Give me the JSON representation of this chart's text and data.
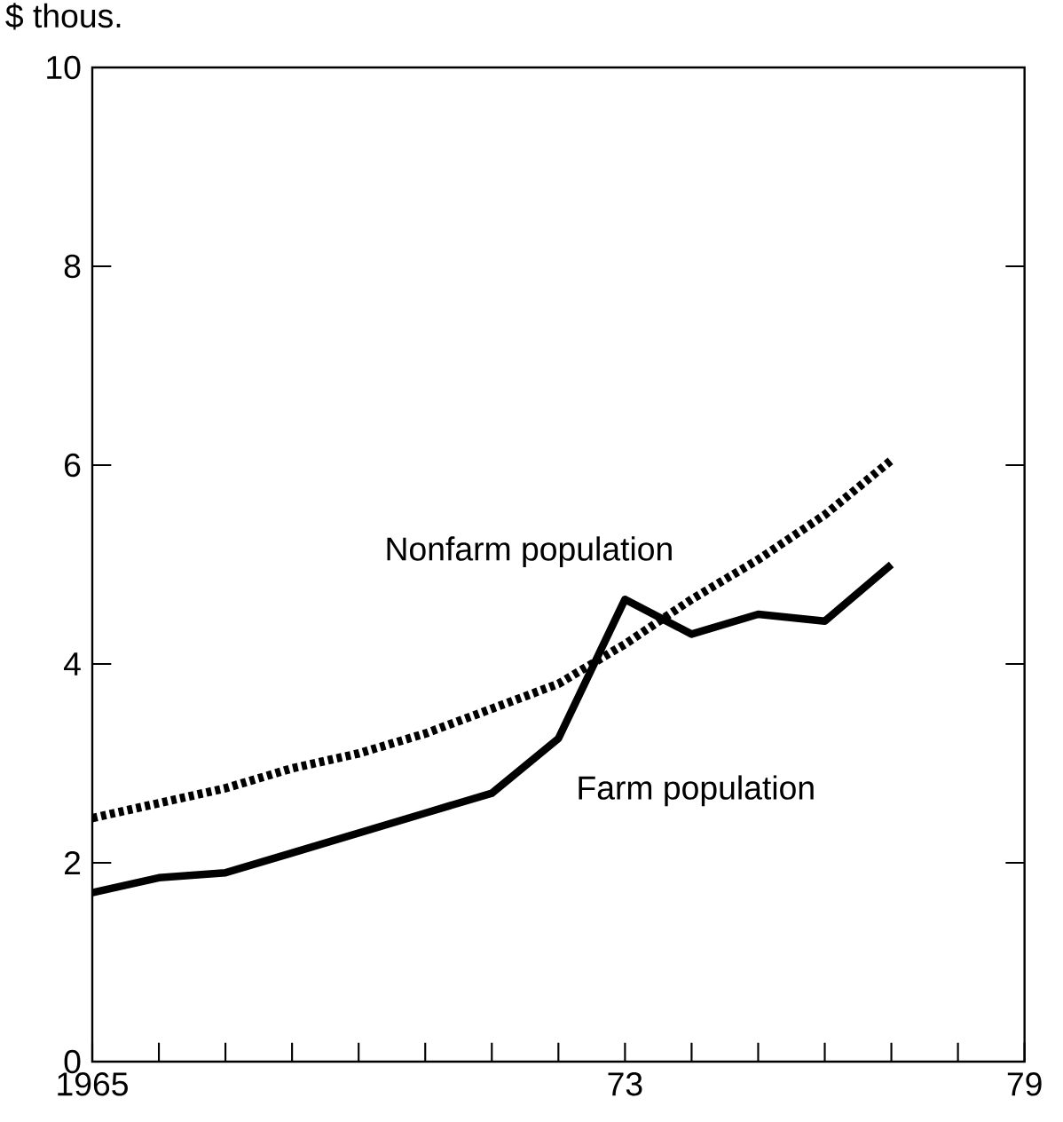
{
  "chart_data": {
    "type": "line",
    "ylabel": "$ thous.",
    "x": [
      1965,
      1966,
      1967,
      1968,
      1969,
      1970,
      1971,
      1972,
      1973,
      1974,
      1975,
      1976,
      1977
    ],
    "series": [
      {
        "name": "Nonfarm population",
        "color": "#000000",
        "line_style": "dotted",
        "values": [
          2.45,
          2.6,
          2.75,
          2.95,
          3.1,
          3.3,
          3.55,
          3.8,
          4.2,
          4.65,
          5.05,
          5.5,
          6.05
        ]
      },
      {
        "name": "Farm population",
        "color": "#000000",
        "line_style": "solid",
        "values": [
          1.7,
          1.85,
          1.9,
          2.1,
          2.3,
          2.5,
          2.7,
          3.25,
          4.65,
          4.3,
          4.5,
          4.43,
          5.0
        ]
      }
    ],
    "xlim": [
      1965,
      1979
    ],
    "xticks": [
      {
        "value": 1965,
        "label": "1965"
      },
      {
        "value": 1966,
        "label": null
      },
      {
        "value": 1967,
        "label": null
      },
      {
        "value": 1968,
        "label": null
      },
      {
        "value": 1969,
        "label": null
      },
      {
        "value": 1970,
        "label": null
      },
      {
        "value": 1971,
        "label": null
      },
      {
        "value": 1972,
        "label": null
      },
      {
        "value": 1973,
        "label": "73"
      },
      {
        "value": 1974,
        "label": null
      },
      {
        "value": 1975,
        "label": null
      },
      {
        "value": 1976,
        "label": null
      },
      {
        "value": 1977,
        "label": null
      },
      {
        "value": 1978,
        "label": null
      },
      {
        "value": 1979,
        "label": "79"
      }
    ],
    "ylim": [
      0,
      10
    ],
    "yticks": [
      0,
      2,
      4,
      6,
      8,
      10
    ],
    "grid": false,
    "marker": "none"
  }
}
